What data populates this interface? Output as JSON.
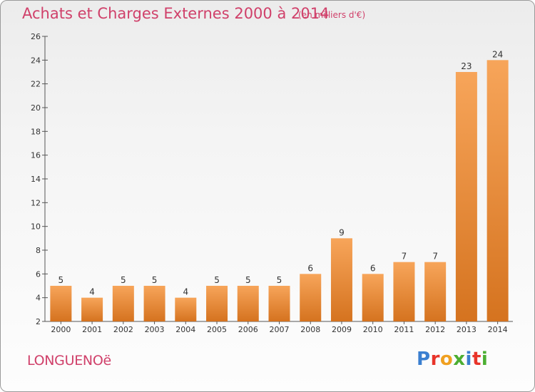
{
  "header": {
    "title": "Achats et Charges Externes 2000 à 2014",
    "unit": "(en milliers d'€)"
  },
  "footer": {
    "place": "LONGUENOë",
    "logo": "Proxiti",
    "logo_colors": [
      "#3a7fd0",
      "#e8342a",
      "#f0a020",
      "#4cae32",
      "#3a7fd0",
      "#e8342a",
      "#4cae32"
    ]
  },
  "colors": {
    "bar_light": "#f7a55a",
    "bar_dark": "#d5731f",
    "title": "#d0406a"
  },
  "chart_data": {
    "type": "bar",
    "title": "Achats et Charges Externes 2000 à 2014",
    "xlabel": "",
    "ylabel": "",
    "categories": [
      "2000",
      "2001",
      "2002",
      "2003",
      "2004",
      "2005",
      "2006",
      "2007",
      "2008",
      "2009",
      "2010",
      "2011",
      "2012",
      "2013",
      "2014"
    ],
    "values": [
      5,
      4,
      5,
      5,
      4,
      5,
      5,
      5,
      6,
      9,
      6,
      7,
      7,
      23,
      24
    ],
    "ylim": [
      2,
      26
    ],
    "yticks": [
      2,
      4,
      6,
      8,
      10,
      12,
      14,
      16,
      18,
      20,
      22,
      24,
      26
    ],
    "grid": false,
    "legend": "none"
  }
}
